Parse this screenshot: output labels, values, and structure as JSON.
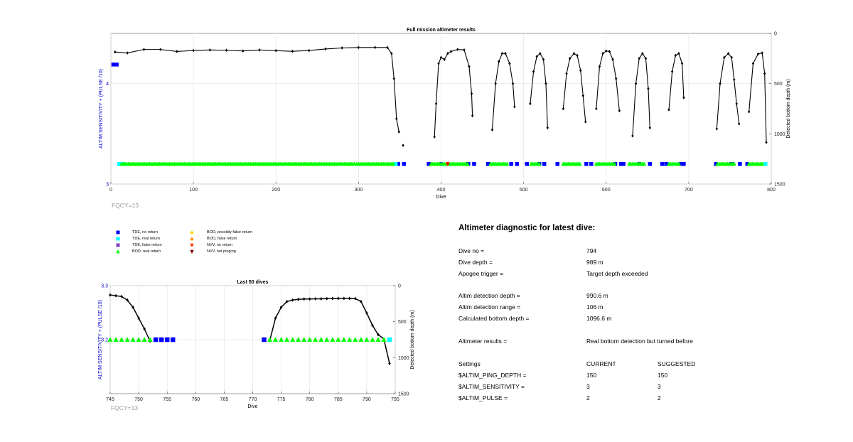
{
  "chart_data": [
    {
      "type": "scatter",
      "title": "Full mission altimeter results",
      "xlabel": "Dive",
      "ylabel_left": "ALTIM SENSITIVITY + (PULSE /10)",
      "ylabel_right": "Detected bottom depth (m)",
      "xlim": [
        0,
        800
      ],
      "ylim_left": [
        3,
        4.5
      ],
      "ylim_right": [
        1500,
        0
      ],
      "x_ticks": [
        "0",
        "100",
        "200",
        "300",
        "400",
        "500",
        "600",
        "700",
        "800"
      ],
      "y_left_ticks": [
        "3",
        "4"
      ],
      "y_right_ticks": [
        "0",
        "500",
        "1000",
        "1500"
      ],
      "grid": true,
      "series": [
        {
          "name": "Detected bottom depth",
          "marker": "diamond",
          "color": "#000000",
          "segments": [
            {
              "x": [
                5,
                20,
                40,
                60,
                80,
                100,
                120,
                140,
                160,
                180,
                200,
                220,
                240,
                260,
                280,
                300,
                320,
                335,
                340,
                343,
                346,
                349
              ],
              "y": [
                185,
                195,
                160,
                160,
                180,
                170,
                165,
                168,
                175,
                165,
                172,
                178,
                170,
                155,
                145,
                140,
                140,
                140,
                200,
                450,
                850,
                980
              ]
            },
            {
              "x": [
                392,
                394,
                397,
                400,
                404,
                408,
                412,
                420,
                428,
                434,
                437,
                438
              ],
              "y": [
                1030,
                700,
                300,
                240,
                260,
                200,
                180,
                160,
                165,
                330,
                600,
                820
              ]
            },
            {
              "x": [
                462,
                466,
                470,
                474,
                478,
                483,
                487,
                489
              ],
              "y": [
                960,
                500,
                280,
                200,
                200,
                300,
                500,
                730
              ]
            },
            {
              "x": [
                508,
                512,
                516,
                520,
                524,
                527,
                529
              ],
              "y": [
                700,
                380,
                230,
                200,
                260,
                500,
                940
              ]
            },
            {
              "x": [
                548,
                552,
                556,
                561,
                565,
                569,
                572,
                575
              ],
              "y": [
                750,
                400,
                250,
                200,
                220,
                370,
                620,
                880
              ]
            },
            {
              "x": [
                588,
                592,
                596,
                600,
                604,
                608,
                612,
                616
              ],
              "y": [
                750,
                330,
                200,
                175,
                180,
                260,
                450,
                770
              ]
            },
            {
              "x": [
                632,
                636,
                640,
                644,
                648,
                651,
                653
              ],
              "y": [
                1020,
                500,
                250,
                200,
                250,
                550,
                940
              ]
            },
            {
              "x": [
                676,
                680,
                684,
                688,
                692,
                694
              ],
              "y": [
                760,
                380,
                220,
                200,
                300,
                640
              ]
            },
            {
              "x": [
                734,
                738,
                743,
                748,
                752,
                755,
                758,
                761
              ],
              "y": [
                950,
                500,
                240,
                200,
                240,
                460,
                700,
                900
              ]
            },
            {
              "x": [
                773,
                778,
                784,
                789,
                792,
                794
              ],
              "y": [
                780,
                300,
                205,
                195,
                400,
                1085
              ]
            }
          ],
          "isolated": [
            {
              "x": 354,
              "y": 1115
            }
          ]
        },
        {
          "name": "TDE, no return",
          "marker": "square",
          "color": "#0000ff",
          "x": [
            3,
            7,
            348,
            355,
            385,
            400,
            433,
            440,
            457,
            485,
            492,
            504,
            519,
            525,
            541,
            576,
            582,
            611,
            618,
            621,
            640,
            653,
            668,
            673,
            690,
            694,
            733,
            752,
            762,
            771
          ],
          "y_left": [
            4.19,
            4.19,
            3.2,
            3.2,
            3.2,
            3.2,
            3.2,
            3.2,
            3.2,
            3.2,
            3.2,
            3.2,
            3.2,
            3.2,
            3.2,
            3.2,
            3.2,
            3.2,
            3.2,
            3.2,
            3.2,
            3.2,
            3.2,
            3.2,
            3.2,
            3.2,
            3.2,
            3.2,
            3.2,
            3.2
          ]
        },
        {
          "name": "TDE, real return",
          "marker": "square",
          "color": "#00ffff",
          "x": [
            10,
            15,
            345,
            793
          ],
          "y_left": [
            3.2,
            3.2,
            3.2,
            3.2
          ]
        },
        {
          "name": "BOD, real return",
          "marker": "triangle-up",
          "color": "#00ff00",
          "x_ranges": [
            [
              13,
              296
            ],
            [
              298,
              343
            ],
            [
              388,
              432
            ],
            [
              460,
              480
            ],
            [
              509,
              520
            ],
            [
              548,
              568
            ],
            [
              588,
              610
            ],
            [
              628,
              646
            ],
            [
              676,
              689
            ],
            [
              735,
              755
            ],
            [
              773,
              790
            ]
          ],
          "y_left": 3.2
        },
        {
          "name": "NVV, no return",
          "marker": "triangle-down",
          "color": "#ff0000",
          "x": [
            408
          ],
          "y_left": [
            3.2
          ]
        }
      ]
    },
    {
      "type": "scatter",
      "title": "Last 50 dives",
      "xlabel": "Dive",
      "ylabel_left": "ALTIM SENSITIVITY + (PULSE /10)",
      "ylabel_right": "Detected bottom depth (m)",
      "xlim": [
        745,
        795
      ],
      "ylim_left": [
        3.1,
        3.3
      ],
      "ylim_right": [
        1500,
        0
      ],
      "x_ticks": [
        "745",
        "750",
        "755",
        "760",
        "765",
        "770",
        "775",
        "780",
        "785",
        "790",
        "795"
      ],
      "y_left_ticks": [
        "3.2",
        "3.3"
      ],
      "y_right_ticks": [
        "0",
        "500",
        "1000",
        "1500"
      ],
      "grid": true,
      "series": [
        {
          "name": "Detected bottom depth",
          "marker": "diamond",
          "color": "#000000",
          "segments": [
            {
              "x": [
                745,
                746,
                747,
                748,
                749,
                750,
                751,
                752
              ],
              "y": [
                130,
                140,
                150,
                200,
                300,
                450,
                600,
                770
              ]
            },
            {
              "x": [
                773,
                774,
                775,
                776,
                777,
                778,
                779,
                780,
                781,
                782,
                783,
                784,
                785,
                786,
                787,
                788,
                789,
                790,
                791,
                792,
                793,
                794
              ],
              "y": [
                760,
                450,
                300,
                220,
                200,
                190,
                185,
                185,
                182,
                182,
                180,
                178,
                178,
                178,
                178,
                180,
                220,
                380,
                550,
                680,
                740,
                1080
              ]
            }
          ]
        },
        {
          "name": "TDE, no return",
          "marker": "square",
          "color": "#0000ff",
          "x": [
            753,
            754,
            755,
            756,
            772
          ],
          "y_left": [
            3.2,
            3.2,
            3.2,
            3.2,
            3.2
          ]
        },
        {
          "name": "TDE, real return",
          "marker": "square",
          "color": "#00ffff",
          "x": [
            794
          ],
          "y_left": [
            3.2
          ]
        },
        {
          "name": "BOD, real return",
          "marker": "triangle-up",
          "color": "#00ff00",
          "x": [
            745,
            746,
            747,
            748,
            749,
            750,
            751,
            752,
            773,
            774,
            775,
            776,
            777,
            778,
            779,
            780,
            781,
            782,
            783,
            784,
            785,
            786,
            787,
            788,
            789,
            790,
            791,
            792,
            793
          ],
          "y_left": 3.2
        }
      ]
    }
  ],
  "fqcy_label": "FQCY=13",
  "legend": [
    {
      "label": "TDE, no return",
      "marker": "square",
      "color": "#0000ff"
    },
    {
      "label": "TDE, real return",
      "marker": "square",
      "color": "#00ffff"
    },
    {
      "label": "TDE, false return",
      "marker": "square",
      "color": "#7f3fbf"
    },
    {
      "label": "BOD, real return",
      "marker": "triangle-up",
      "color": "#00ff00"
    },
    {
      "label": "BOD, possibly false return",
      "marker": "triangle-up",
      "color": "#ffd700"
    },
    {
      "label": "BOD, false return",
      "marker": "triangle-up",
      "color": "#ff8c00"
    },
    {
      "label": "NVV, no return",
      "marker": "triangle-down",
      "color": "#ff3300"
    },
    {
      "label": "NVV, not pinging",
      "marker": "triangle-down",
      "color": "#800000"
    }
  ],
  "diagnostic": {
    "title": "Altimeter diagnostic for latest dive:",
    "dive_no_label": "Dive no =",
    "dive_no": "794",
    "dive_depth_label": "Dive depth =",
    "dive_depth": "989 m",
    "apogee_label": "Apogee trigger =",
    "apogee": "Target depth exceeded",
    "det_depth_label": "Altim detection depth =",
    "det_depth": "990.6 m",
    "det_range_label": "Altim detection range =",
    "det_range": "106 m",
    "calc_bottom_label": "Calculated bottom depth =",
    "calc_bottom": "1096.6 m",
    "results_label": "Altimeter results =",
    "results": "Real bottom detection but turned before",
    "settings_label": "Settings",
    "current_label": "CURRENT",
    "suggested_label": "SUGGESTED",
    "ping_label": "$ALTIM_PING_DEPTH =",
    "ping_current": "150",
    "ping_suggested": "150",
    "sens_label": "$ALTIM_SENSITIVITY =",
    "sens_current": "3",
    "sens_suggested": "3",
    "pulse_label": "$ALTIM_PULSE =",
    "pulse_current": "2",
    "pulse_suggested": "2"
  }
}
